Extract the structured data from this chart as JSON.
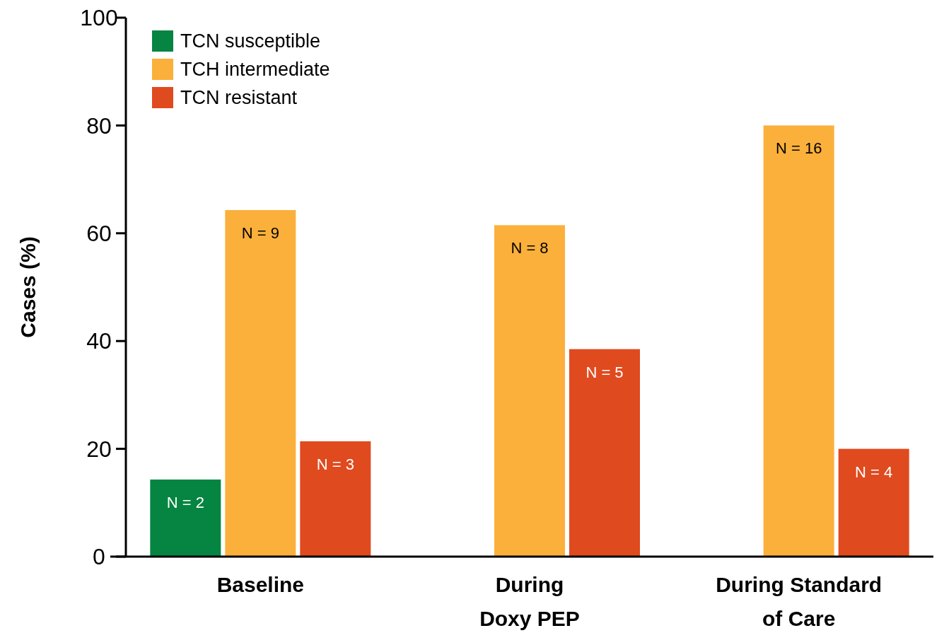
{
  "chart_data": {
    "type": "bar",
    "ylabel": "Cases (%)",
    "categories": [
      "Baseline",
      "During\nDoxy PEP",
      "During Standard\nof Care"
    ],
    "series": [
      {
        "name": "TCN susceptible",
        "color": "#068441",
        "values": [
          14.3,
          null,
          null
        ]
      },
      {
        "name": "TCH intermediate",
        "color": "#fbb03b",
        "values": [
          64.3,
          61.5,
          80
        ]
      },
      {
        "name": "TCN resistant",
        "color": "#e04a1f",
        "values": [
          21.4,
          38.5,
          20
        ]
      }
    ],
    "annotations": [
      "N = 2",
      "N = 9",
      "N = 3",
      "N = 8",
      "N = 5",
      "N = 16",
      "N = 4"
    ],
    "ylim": [
      0,
      100
    ],
    "yticks": [
      0,
      20,
      40,
      60,
      80,
      100
    ],
    "grid": false,
    "legend": "top left"
  }
}
